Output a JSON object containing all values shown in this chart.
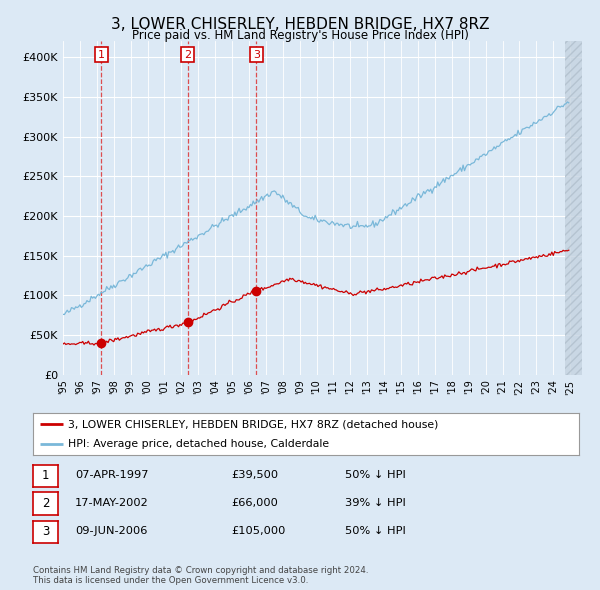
{
  "title": "3, LOWER CHISERLEY, HEBDEN BRIDGE, HX7 8RZ",
  "subtitle": "Price paid vs. HM Land Registry's House Price Index (HPI)",
  "sale_dates_dec": [
    1997.27,
    2002.38,
    2006.44
  ],
  "sale_prices": [
    39500,
    66000,
    105000
  ],
  "sale_labels": [
    "1",
    "2",
    "3"
  ],
  "ylim": [
    0,
    420000
  ],
  "yticks": [
    0,
    50000,
    100000,
    150000,
    200000,
    250000,
    300000,
    350000,
    400000
  ],
  "ytick_labels": [
    "£0",
    "£50K",
    "£100K",
    "£150K",
    "£200K",
    "£250K",
    "£300K",
    "£350K",
    "£400K"
  ],
  "xlim_start": 1995.0,
  "xlim_end": 2025.7,
  "xtick_years": [
    1995,
    1996,
    1997,
    1998,
    1999,
    2000,
    2001,
    2002,
    2003,
    2004,
    2005,
    2006,
    2007,
    2008,
    2009,
    2010,
    2011,
    2012,
    2013,
    2014,
    2015,
    2016,
    2017,
    2018,
    2019,
    2020,
    2021,
    2022,
    2023,
    2024,
    2025
  ],
  "hpi_color": "#7ab8d9",
  "price_color": "#cc0000",
  "vline_color": "#dd3333",
  "bg_color": "#dce9f5",
  "plot_bg": "#dce9f5",
  "grid_color": "#ffffff",
  "legend_label_red": "3, LOWER CHISERLEY, HEBDEN BRIDGE, HX7 8RZ (detached house)",
  "legend_label_blue": "HPI: Average price, detached house, Calderdale",
  "table_rows": [
    {
      "num": "1",
      "date": "07-APR-1997",
      "price": "£39,500",
      "pct": "50% ↓ HPI"
    },
    {
      "num": "2",
      "date": "17-MAY-2002",
      "price": "£66,000",
      "pct": "39% ↓ HPI"
    },
    {
      "num": "3",
      "date": "09-JUN-2006",
      "price": "£105,000",
      "pct": "50% ↓ HPI"
    }
  ],
  "footer": "Contains HM Land Registry data © Crown copyright and database right 2024.\nThis data is licensed under the Open Government Licence v3.0."
}
